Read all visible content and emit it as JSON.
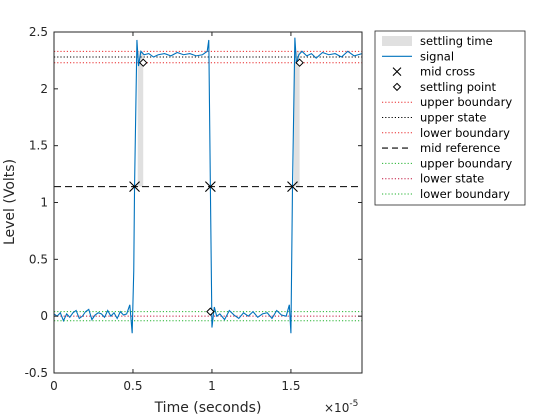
{
  "chart_data": {
    "type": "line",
    "xlabel": "Time (seconds)",
    "ylabel": "Level (Volts)",
    "x_exponent_label": "×10",
    "x_exponent_power": "-5",
    "xlim": [
      0,
      1.95
    ],
    "ylim": [
      -0.5,
      2.5
    ],
    "x_unit_scale": "1e-5",
    "xticks": [
      0,
      0.5,
      1,
      1.5
    ],
    "xtick_labels": [
      "0",
      "0.5",
      "1",
      "1.5"
    ],
    "yticks": [
      -0.5,
      0,
      0.5,
      1,
      1.5,
      2,
      2.5
    ],
    "ytick_labels": [
      "-0.5",
      "0",
      "0.5",
      "1",
      "1.5",
      "2",
      "2.5"
    ],
    "grid": false,
    "legend_position": "outside-right",
    "legend": [
      {
        "label": "settling time",
        "style": "patch",
        "color": "#e0e0e0"
      },
      {
        "label": "signal",
        "style": "line",
        "color": "#0072bd"
      },
      {
        "label": "mid cross",
        "style": "x-marker",
        "color": "#000000"
      },
      {
        "label": "settling point",
        "style": "diamond-marker",
        "color": "#000000"
      },
      {
        "label": "upper boundary",
        "style": "dotted",
        "color": "#e8292a"
      },
      {
        "label": "upper state",
        "style": "dotted",
        "color": "#000000"
      },
      {
        "label": "lower boundary",
        "style": "dotted",
        "color": "#e8292a"
      },
      {
        "label": "mid reference",
        "style": "dashed",
        "color": "#000000"
      },
      {
        "label": "upper boundary",
        "style": "dotted",
        "color": "#22b22e"
      },
      {
        "label": "lower state",
        "style": "dotted",
        "color": "#c0143c"
      },
      {
        "label": "lower boundary",
        "style": "dotted",
        "color": "#22b22e"
      }
    ],
    "reference_lines": {
      "upper_boundary_high": 2.33,
      "upper_state": 2.28,
      "upper_boundary_low": 2.23,
      "mid_reference": 1.14,
      "lower_boundary_high": 0.04,
      "lower_state": 0.0,
      "lower_boundary_low": -0.04
    },
    "settling_regions": [
      {
        "x_start": 0.53,
        "x_end": 0.565
      },
      {
        "x_start": 1.52,
        "x_end": 1.555
      }
    ],
    "mid_crosses": [
      {
        "x": 0.51,
        "y": 1.14
      },
      {
        "x": 0.99,
        "y": 1.14
      },
      {
        "x": 1.51,
        "y": 1.14
      }
    ],
    "settling_points": [
      {
        "x": 0.565,
        "y": 2.23
      },
      {
        "x": 0.99,
        "y": 0.04
      },
      {
        "x": 1.555,
        "y": 2.23
      }
    ],
    "series": [
      {
        "color": "#0072bd",
        "x": [
          0,
          0.02,
          0.04,
          0.06,
          0.08,
          0.1,
          0.12,
          0.14,
          0.16,
          0.18,
          0.2,
          0.22,
          0.24,
          0.26,
          0.28,
          0.3,
          0.32,
          0.34,
          0.36,
          0.38,
          0.4,
          0.42,
          0.44,
          0.46,
          0.48,
          0.495,
          0.505,
          0.51,
          0.525,
          0.535,
          0.55,
          0.57,
          0.6,
          0.63,
          0.66,
          0.7,
          0.74,
          0.78,
          0.82,
          0.86,
          0.9,
          0.94,
          0.97,
          0.98,
          0.99,
          1.0,
          1.015,
          1.03,
          1.05,
          1.08,
          1.11,
          1.14,
          1.17,
          1.2,
          1.23,
          1.26,
          1.29,
          1.32,
          1.35,
          1.38,
          1.41,
          1.44,
          1.47,
          1.49,
          1.5,
          1.51,
          1.525,
          1.535,
          1.55,
          1.57,
          1.6,
          1.63,
          1.66,
          1.7,
          1.74,
          1.78,
          1.82,
          1.86,
          1.9,
          1.95
        ],
        "y": [
          0.02,
          0.0,
          0.03,
          -0.04,
          0.02,
          -0.01,
          0.03,
          0.05,
          -0.02,
          0.0,
          0.04,
          0.06,
          -0.03,
          0.01,
          0.03,
          0.02,
          -0.01,
          0.05,
          0.0,
          0.03,
          -0.02,
          0.04,
          0.01,
          0.02,
          0.1,
          -0.15,
          0.4,
          1.14,
          2.43,
          2.2,
          2.33,
          2.3,
          2.31,
          2.28,
          2.3,
          2.31,
          2.29,
          2.32,
          2.3,
          2.31,
          2.29,
          2.3,
          2.33,
          2.43,
          1.14,
          -0.1,
          0.08,
          0.0,
          0.02,
          -0.03,
          0.05,
          0.01,
          -0.02,
          0.03,
          0.0,
          0.04,
          -0.01,
          0.02,
          0.03,
          -0.02,
          0.05,
          0.01,
          0.0,
          0.1,
          -0.15,
          1.14,
          2.45,
          2.22,
          2.3,
          2.33,
          2.29,
          2.31,
          2.27,
          2.32,
          2.3,
          2.31,
          2.28,
          2.33,
          2.29,
          2.31
        ]
      }
    ]
  }
}
